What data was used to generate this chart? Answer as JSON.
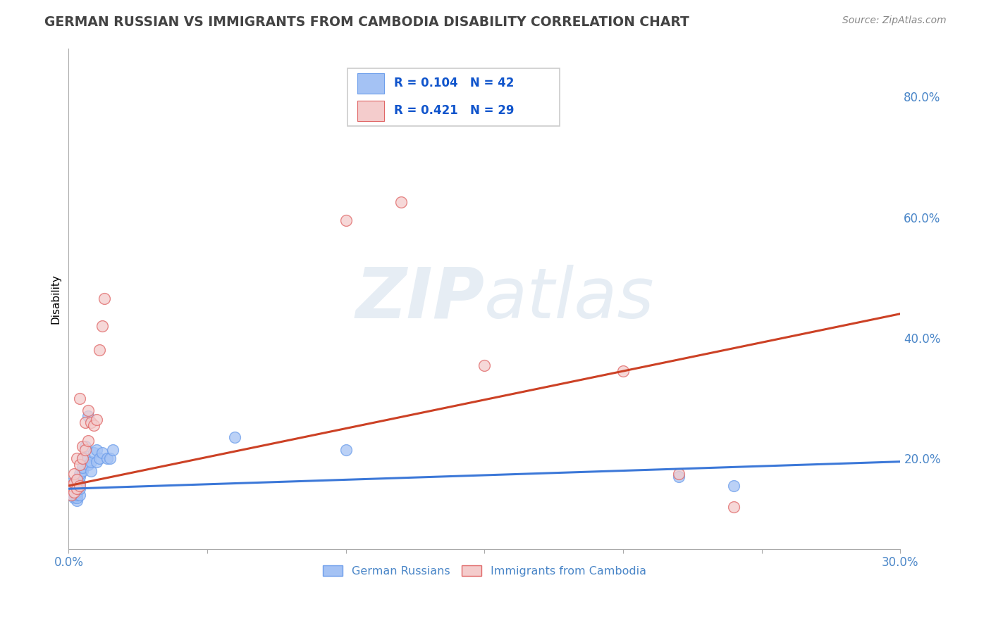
{
  "title": "GERMAN RUSSIAN VS IMMIGRANTS FROM CAMBODIA DISABILITY CORRELATION CHART",
  "source": "Source: ZipAtlas.com",
  "ylabel": "Disability",
  "watermark": "ZIPatlas",
  "xlim": [
    0.0,
    0.3
  ],
  "ylim": [
    0.05,
    0.88
  ],
  "xticks": [
    0.0,
    0.05,
    0.1,
    0.15,
    0.2,
    0.25,
    0.3
  ],
  "xticklabels": [
    "0.0%",
    "",
    "",
    "",
    "",
    "",
    "30.0%"
  ],
  "yticks": [
    0.2,
    0.4,
    0.6,
    0.8
  ],
  "yticklabels": [
    "20.0%",
    "40.0%",
    "60.0%",
    "80.0%"
  ],
  "legend_label1": "German Russians",
  "legend_label2": "Immigrants from Cambodia",
  "R1": "0.104",
  "N1": "42",
  "R2": "0.421",
  "N2": "29",
  "color_blue": "#a4c2f4",
  "color_pink": "#f4cccc",
  "edge_blue": "#6d9eeb",
  "edge_pink": "#e06666",
  "line_blue": "#3c78d8",
  "line_pink": "#cc4125",
  "title_color": "#434343",
  "axis_label_color": "#4a86c8",
  "legend_text_color": "#1155cc",
  "grid_color": "#cccccc",
  "background_color": "#ffffff",
  "blue_x": [
    0.001,
    0.001,
    0.001,
    0.001,
    0.002,
    0.002,
    0.002,
    0.002,
    0.002,
    0.002,
    0.003,
    0.003,
    0.003,
    0.003,
    0.003,
    0.003,
    0.004,
    0.004,
    0.004,
    0.004,
    0.004,
    0.005,
    0.005,
    0.005,
    0.006,
    0.006,
    0.007,
    0.007,
    0.008,
    0.008,
    0.009,
    0.01,
    0.01,
    0.011,
    0.012,
    0.014,
    0.015,
    0.016,
    0.06,
    0.1,
    0.22,
    0.24
  ],
  "blue_y": [
    0.14,
    0.145,
    0.155,
    0.16,
    0.135,
    0.14,
    0.145,
    0.15,
    0.155,
    0.16,
    0.13,
    0.135,
    0.14,
    0.145,
    0.155,
    0.16,
    0.14,
    0.15,
    0.16,
    0.17,
    0.175,
    0.18,
    0.185,
    0.2,
    0.2,
    0.22,
    0.19,
    0.27,
    0.18,
    0.195,
    0.21,
    0.195,
    0.215,
    0.2,
    0.21,
    0.2,
    0.2,
    0.215,
    0.235,
    0.215,
    0.17,
    0.155
  ],
  "pink_x": [
    0.001,
    0.001,
    0.002,
    0.002,
    0.002,
    0.003,
    0.003,
    0.003,
    0.004,
    0.004,
    0.004,
    0.005,
    0.005,
    0.006,
    0.006,
    0.007,
    0.007,
    0.008,
    0.009,
    0.01,
    0.011,
    0.012,
    0.013,
    0.1,
    0.15,
    0.2,
    0.22,
    0.24,
    0.12
  ],
  "pink_y": [
    0.14,
    0.155,
    0.145,
    0.16,
    0.175,
    0.15,
    0.165,
    0.2,
    0.155,
    0.19,
    0.3,
    0.2,
    0.22,
    0.215,
    0.26,
    0.23,
    0.28,
    0.26,
    0.255,
    0.265,
    0.38,
    0.42,
    0.465,
    0.595,
    0.355,
    0.345,
    0.175,
    0.12,
    0.625
  ],
  "blue_trend_x": [
    0.0,
    0.3
  ],
  "blue_trend_y": [
    0.15,
    0.195
  ],
  "pink_trend_x": [
    0.0,
    0.3
  ],
  "pink_trend_y": [
    0.155,
    0.44
  ]
}
